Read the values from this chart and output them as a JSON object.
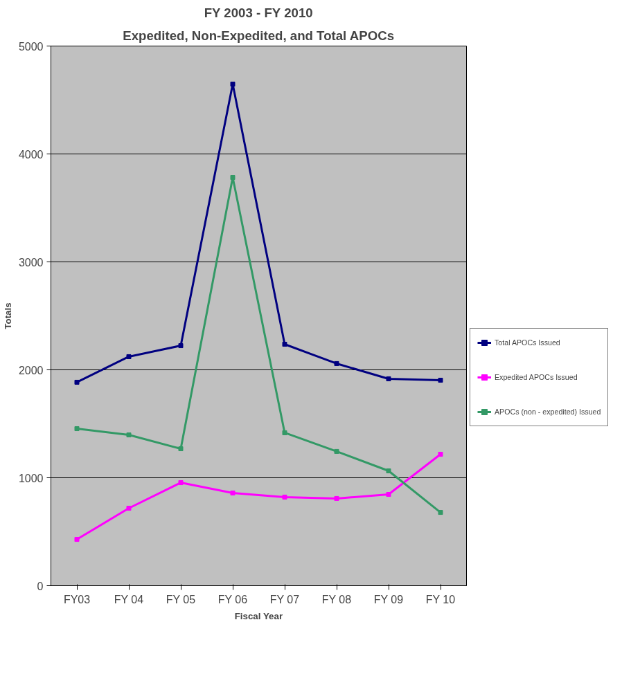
{
  "chart_data": {
    "type": "line",
    "title": "FY 2003 - FY 2010",
    "subtitle": "Expedited, Non-Expedited, and Total APOCs",
    "xlabel": "Fiscal Year",
    "ylabel": "Totals",
    "categories": [
      "FY03",
      "FY 04",
      "FY 05",
      "FY 06",
      "FY 07",
      "FY 08",
      "FY 09",
      "FY 10"
    ],
    "series": [
      {
        "name": "Total APOCs Issued",
        "color": "#000080",
        "values": [
          1885,
          2122,
          2224,
          4647,
          2237,
          2058,
          1917,
          1904
        ]
      },
      {
        "name": "Expedited APOCs Issued",
        "color": "#ff00ff",
        "values": [
          429,
          718,
          955,
          859,
          821,
          808,
          846,
          1218
        ]
      },
      {
        "name": "APOCs (non - expedited) Issued",
        "color": "#339966",
        "values": [
          1455,
          1397,
          1269,
          3782,
          1417,
          1244,
          1064,
          679
        ]
      }
    ],
    "ylim": [
      0,
      5000
    ],
    "yticks": [
      0,
      1000,
      2000,
      3000,
      4000,
      5000
    ],
    "grid": "y",
    "legend": "right",
    "marker": "square",
    "line_style": "solid"
  }
}
